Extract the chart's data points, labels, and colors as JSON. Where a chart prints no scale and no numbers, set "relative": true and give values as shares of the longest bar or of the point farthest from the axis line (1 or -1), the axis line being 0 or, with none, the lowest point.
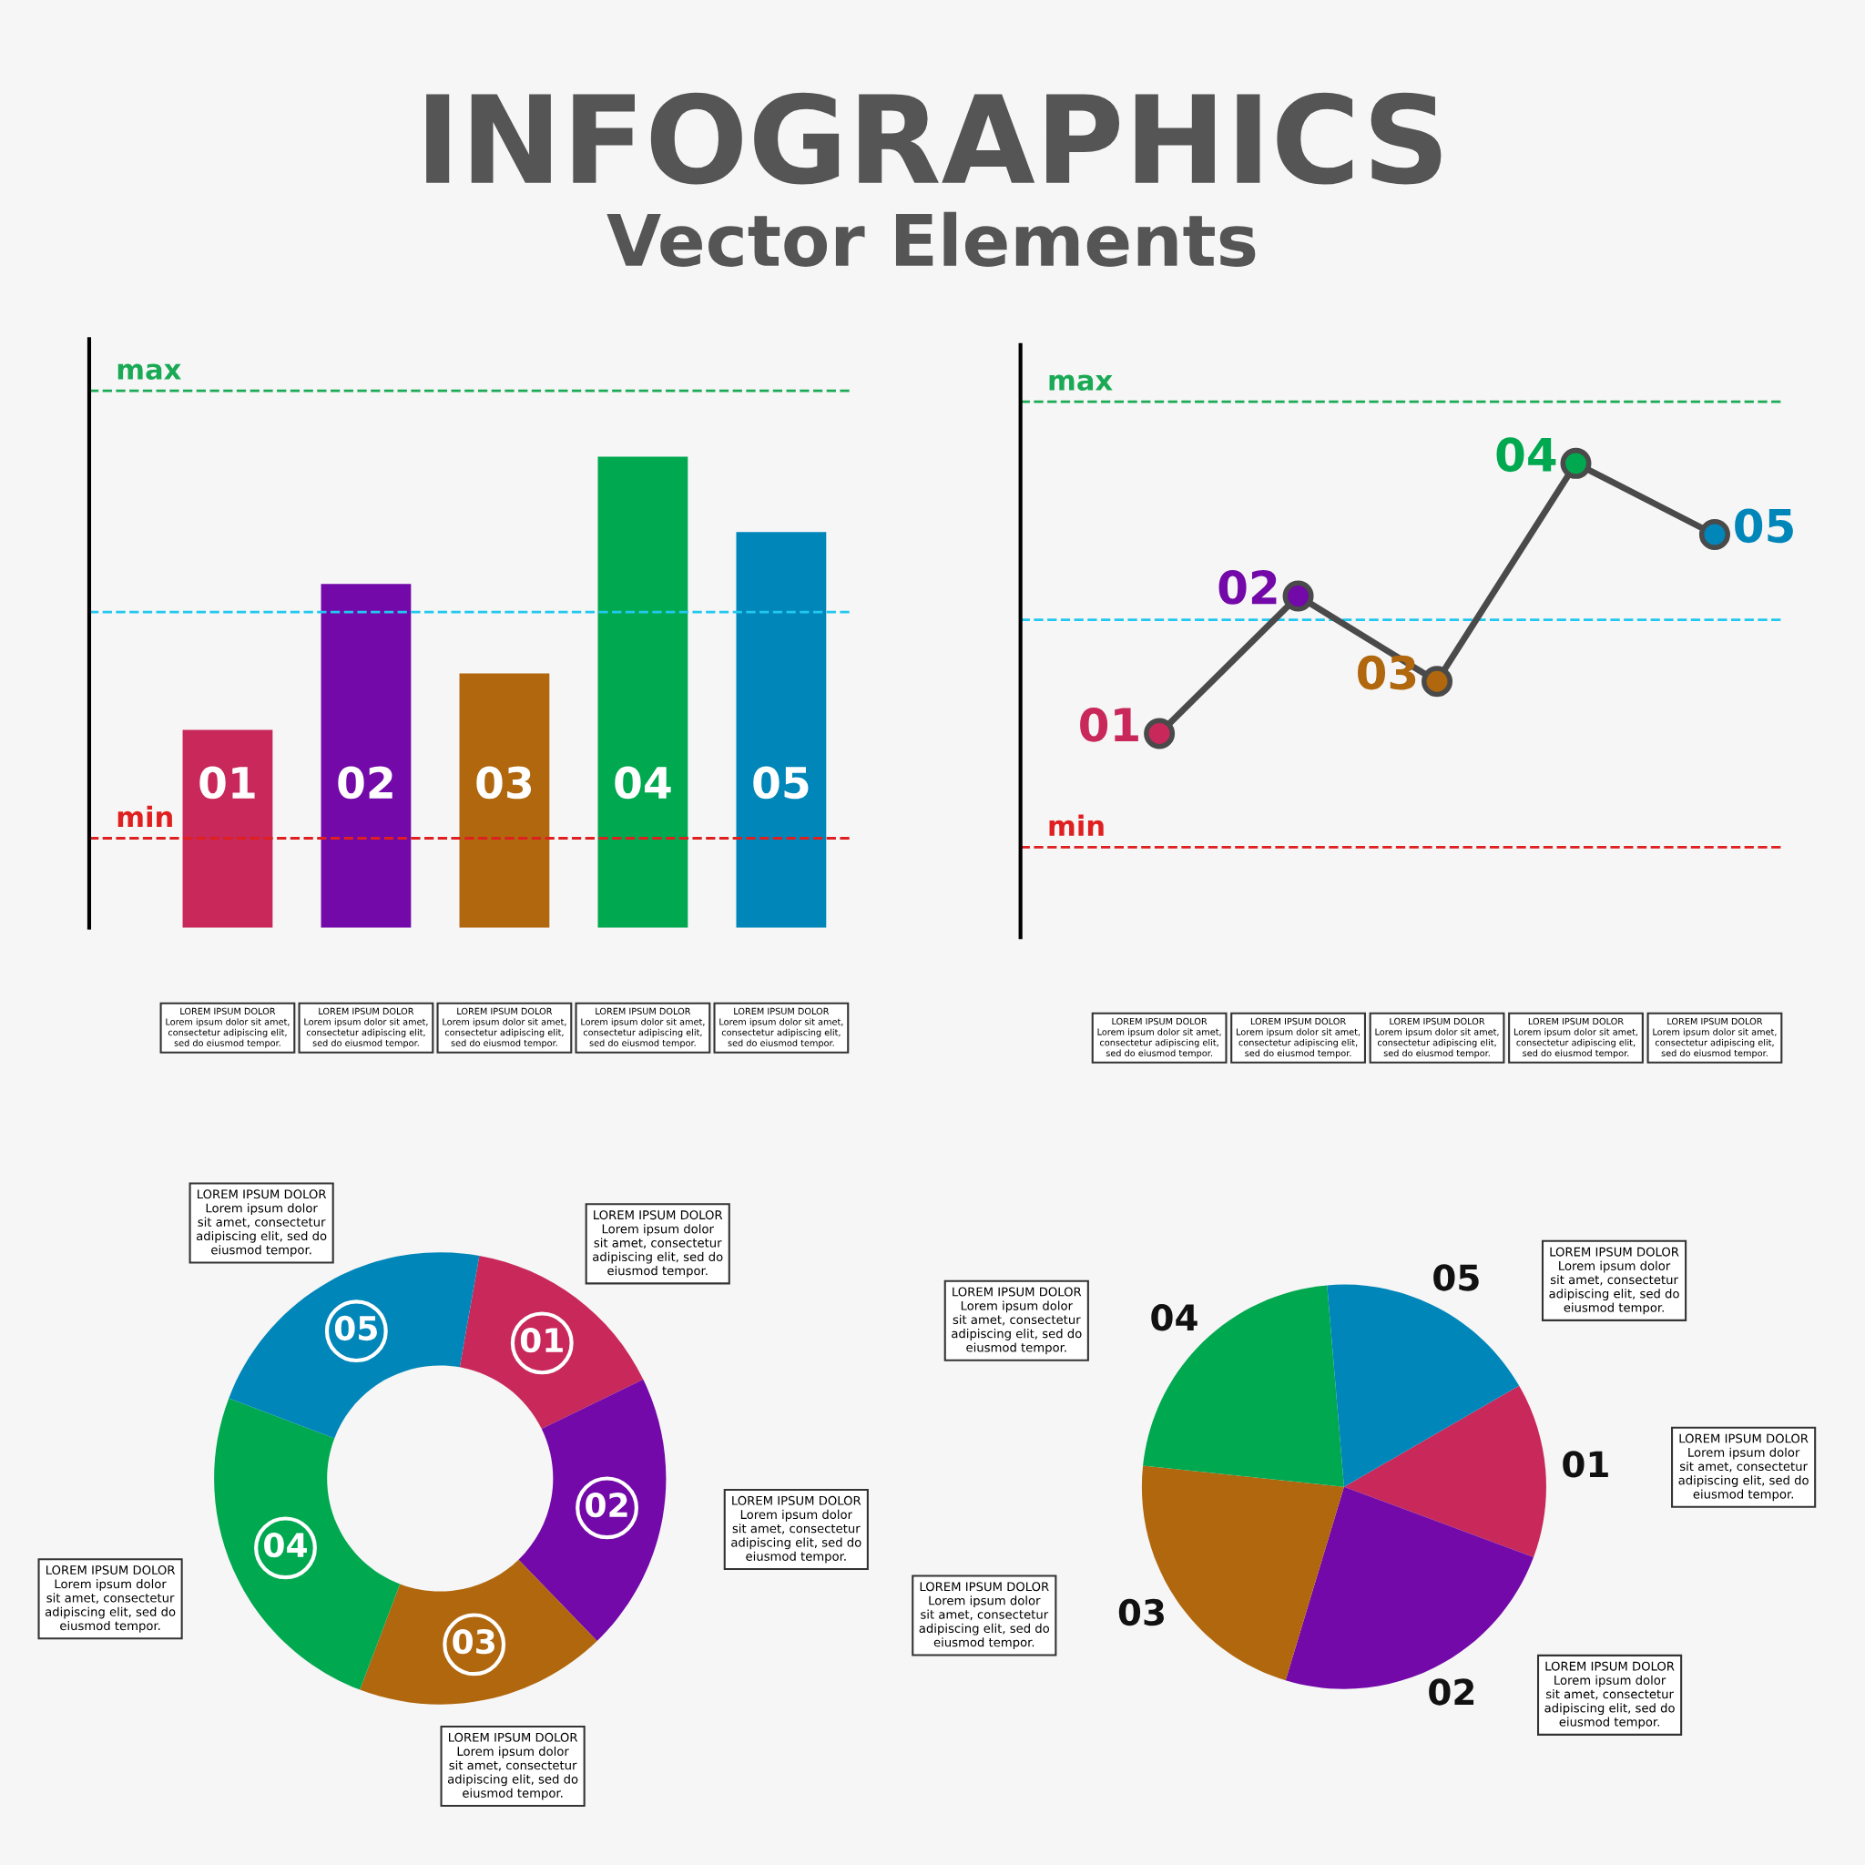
{
  "chart_data": [
    {
      "type": "bar",
      "title": "INFOGRAPHICS",
      "subtitle": "Vector Elements",
      "relative": true,
      "categories": [
        "01",
        "02",
        "03",
        "04",
        "05"
      ],
      "values": [
        0.42,
        0.73,
        0.54,
        1.0,
        0.84
      ],
      "colors": [
        "#c8285a",
        "#7209a8",
        "#b0670e",
        "#00a84f",
        "#0086b9"
      ],
      "ref_lines": [
        {
          "axis": "y",
          "value": 1.14,
          "label": "max",
          "color": "#1aaa55",
          "line_style": "dashed"
        },
        {
          "axis": "y",
          "value": 0.67,
          "label": null,
          "color": "#22c8f0",
          "line_style": "dashed"
        },
        {
          "axis": "y",
          "value": 0.19,
          "label": "min",
          "color": "#e02020",
          "line_style": "dashed"
        }
      ],
      "annotations": [
        "LOREM IPSUM DOLOR\nLorem ipsum dolor sit amet,\nconsectetur adipiscing elit,\nsed do eiusmod tempor.",
        "LOREM IPSUM DOLOR\nLorem ipsum dolor sit amet,\nconsectetur adipiscing elit,\nsed do eiusmod tempor.",
        "LOREM IPSUM DOLOR\nLorem ipsum dolor sit amet,\nconsectetur adipiscing elit,\nsed do eiusmod tempor.",
        "LOREM IPSUM DOLOR\nLorem ipsum dolor sit amet,\nconsectetur adipiscing elit,\nsed do eiusmod tempor.",
        "LOREM IPSUM DOLOR\nLorem ipsum dolor sit amet,\nconsectetur adipiscing elit,\nsed do eiusmod tempor."
      ]
    },
    {
      "type": "line",
      "relative": true,
      "categories": [
        null,
        null,
        null,
        null,
        null
      ],
      "series": [
        {
          "color": "#4a4a4a",
          "values": [
            0.43,
            0.72,
            0.54,
            1.0,
            0.85
          ],
          "colors": [
            "#c8285a",
            "#7209a8",
            "#b0670e",
            "#00a84f",
            "#0086b9"
          ]
        }
      ],
      "marker": "circle",
      "line_style": "solid",
      "ref_lines": [
        {
          "axis": "y",
          "value": 1.13,
          "label": "max",
          "color": "#1aaa55",
          "line_style": "dashed"
        },
        {
          "axis": "y",
          "value": 0.67,
          "label": null,
          "color": "#22c8f0",
          "line_style": "dashed"
        },
        {
          "axis": "y",
          "value": 0.19,
          "label": "min",
          "color": "#e02020",
          "line_style": "dashed"
        }
      ],
      "annotations": [
        "01",
        "02",
        "03",
        "04",
        "05",
        "LOREM IPSUM DOLOR\nLorem ipsum dolor sit amet,\nconsectetur adipiscing elit,\nsed do eiusmod tempor.",
        "LOREM IPSUM DOLOR\nLorem ipsum dolor sit amet,\nconsectetur adipiscing elit,\nsed do eiusmod tempor.",
        "LOREM IPSUM DOLOR\nLorem ipsum dolor sit amet,\nconsectetur adipiscing elit,\nsed do eiusmod tempor.",
        "LOREM IPSUM DOLOR\nLorem ipsum dolor sit amet,\nconsectetur adipiscing elit,\nsed do eiusmod tempor.",
        "LOREM IPSUM DOLOR\nLorem ipsum dolor sit amet,\nconsectetur adipiscing elit,\nsed do eiusmod tempor."
      ]
    },
    {
      "type": "donut",
      "categories": [
        "01",
        "02",
        "03",
        "04",
        "05"
      ],
      "values": [
        15,
        20,
        18,
        25,
        22
      ],
      "colors": [
        "#c8285a",
        "#7209a8",
        "#b0670e",
        "#00a84f",
        "#0086b9"
      ],
      "annotations": [
        "LOREM IPSUM DOLOR\nLorem ipsum dolor\nsit amet, consectetur\nadipiscing elit, sed do\neiusmod tempor.",
        "LOREM IPSUM DOLOR\nLorem ipsum dolor\nsit amet, consectetur\nadipiscing elit, sed do\neiusmod tempor.",
        "LOREM IPSUM DOLOR\nLorem ipsum dolor\nsit amet, consectetur\nadipiscing elit, sed do\neiusmod tempor.",
        "LOREM IPSUM DOLOR\nLorem ipsum dolor\nsit amet, consectetur\nadipiscing elit, sed do\neiusmod tempor.",
        "LOREM IPSUM DOLOR\nLorem ipsum dolor\nsit amet, consectetur\nadipiscing elit, sed do\neiusmod tempor."
      ]
    },
    {
      "type": "pie",
      "categories": [
        "01",
        "02",
        "03",
        "04",
        "05"
      ],
      "values": [
        14,
        24,
        22,
        22,
        18
      ],
      "colors": [
        "#c8285a",
        "#7209a8",
        "#b0670e",
        "#00a84f",
        "#0086b9"
      ],
      "annotations": [
        "LOREM IPSUM DOLOR\nLorem ipsum dolor\nsit amet, consectetur\nadipiscing elit, sed do\neiusmod tempor.",
        "LOREM IPSUM DOLOR\nLorem ipsum dolor\nsit amet, consectetur\nadipiscing elit, sed do\neiusmod tempor.",
        "LOREM IPSUM DOLOR\nLorem ipsum dolor\nsit amet, consectetur\nadipiscing elit, sed do\neiusmod tempor.",
        "LOREM IPSUM DOLOR\nLorem ipsum dolor\nsit amet, consectetur\nadipiscing elit, sed do\neiusmod tempor.",
        "LOREM IPSUM DOLOR\nLorem ipsum dolor\nsit amet, consectetur\nadipiscing elit, sed do\neiusmod tempor."
      ]
    }
  ]
}
